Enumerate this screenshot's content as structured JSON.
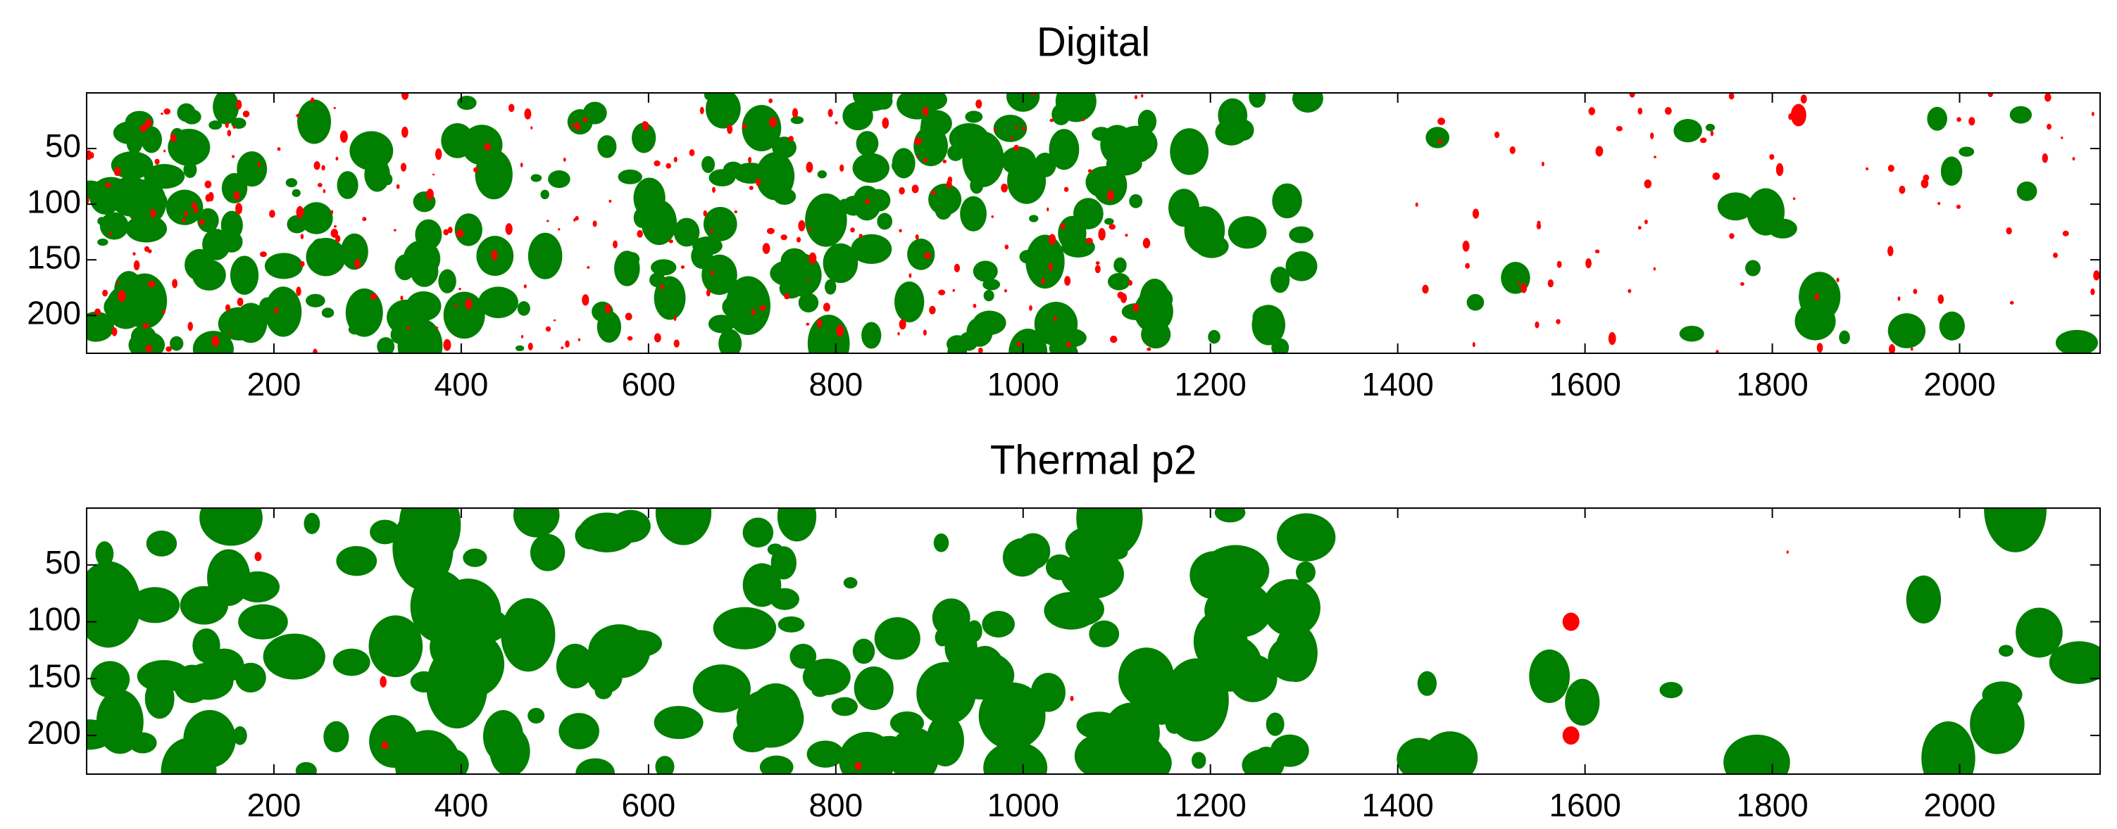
{
  "chart_data": [
    {
      "type": "image",
      "title": "Digital",
      "xlim": [
        0,
        2150
      ],
      "ylim": [
        234,
        0
      ],
      "y_reversed": true,
      "xticks": [
        200,
        400,
        600,
        800,
        1000,
        1200,
        1400,
        1600,
        1800,
        2000
      ],
      "yticks": [
        50,
        100,
        150,
        200
      ],
      "colors": [
        "#007f00",
        "#ff0000"
      ]
    },
    {
      "type": "image",
      "title": "Thermal p2",
      "xlim": [
        0,
        2150
      ],
      "ylim": [
        234,
        0
      ],
      "y_reversed": true,
      "xticks": [
        200,
        400,
        600,
        800,
        1000,
        1200,
        1400,
        1600,
        1800,
        2000
      ],
      "yticks": [
        50,
        100,
        150,
        200
      ],
      "colors": [
        "#007f00",
        "#ff0000"
      ]
    }
  ]
}
